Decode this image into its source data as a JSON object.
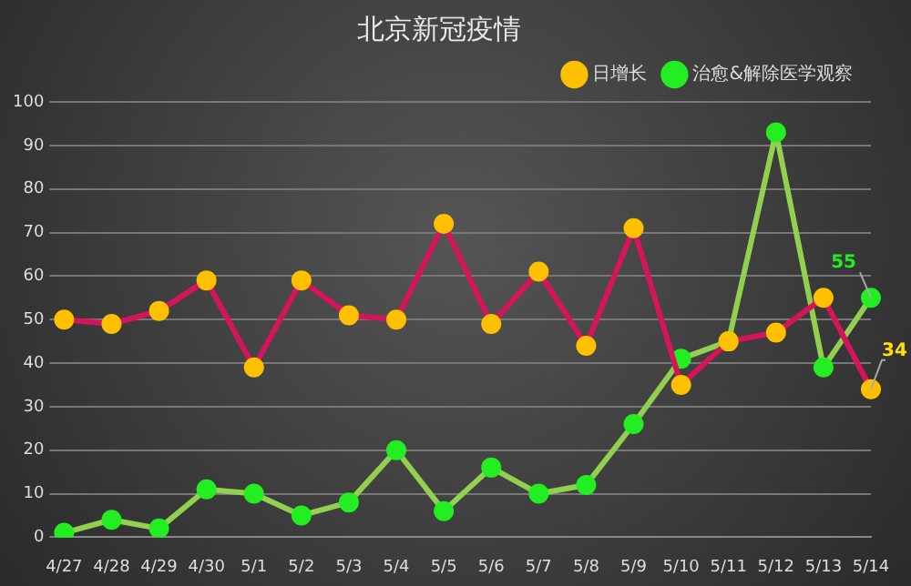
{
  "chart_data": {
    "type": "line",
    "title": "北京新冠疫情",
    "categories": [
      "4/27",
      "4/28",
      "4/29",
      "4/30",
      "5/1",
      "5/2",
      "5/3",
      "5/4",
      "5/5",
      "5/6",
      "5/7",
      "5/8",
      "5/9",
      "5/10",
      "5/11",
      "5/12",
      "5/13",
      "5/14"
    ],
    "series": [
      {
        "name": "日增长",
        "color": "#d6145c",
        "values": [
          50,
          49,
          52,
          59,
          39,
          59,
          51,
          50,
          72,
          49,
          61,
          44,
          71,
          35,
          45,
          47,
          55,
          34
        ]
      },
      {
        "name": "治愈&解除医学观察",
        "color": "#92d050",
        "values": [
          1,
          4,
          2,
          11,
          10,
          5,
          8,
          20,
          6,
          16,
          10,
          12,
          26,
          41,
          45,
          93,
          39,
          55
        ]
      }
    ],
    "ylim": [
      0,
      100
    ],
    "yticks": [
      0,
      10,
      20,
      30,
      40,
      50,
      60,
      70,
      80,
      90,
      100
    ],
    "grid": "y",
    "legend": "top right",
    "marker": "circle",
    "line_style": "solid",
    "annotations": [
      {
        "text": "55",
        "x": "5/14",
        "y": 55
      },
      {
        "text": "34",
        "x": "5/14",
        "y": 34
      }
    ]
  }
}
